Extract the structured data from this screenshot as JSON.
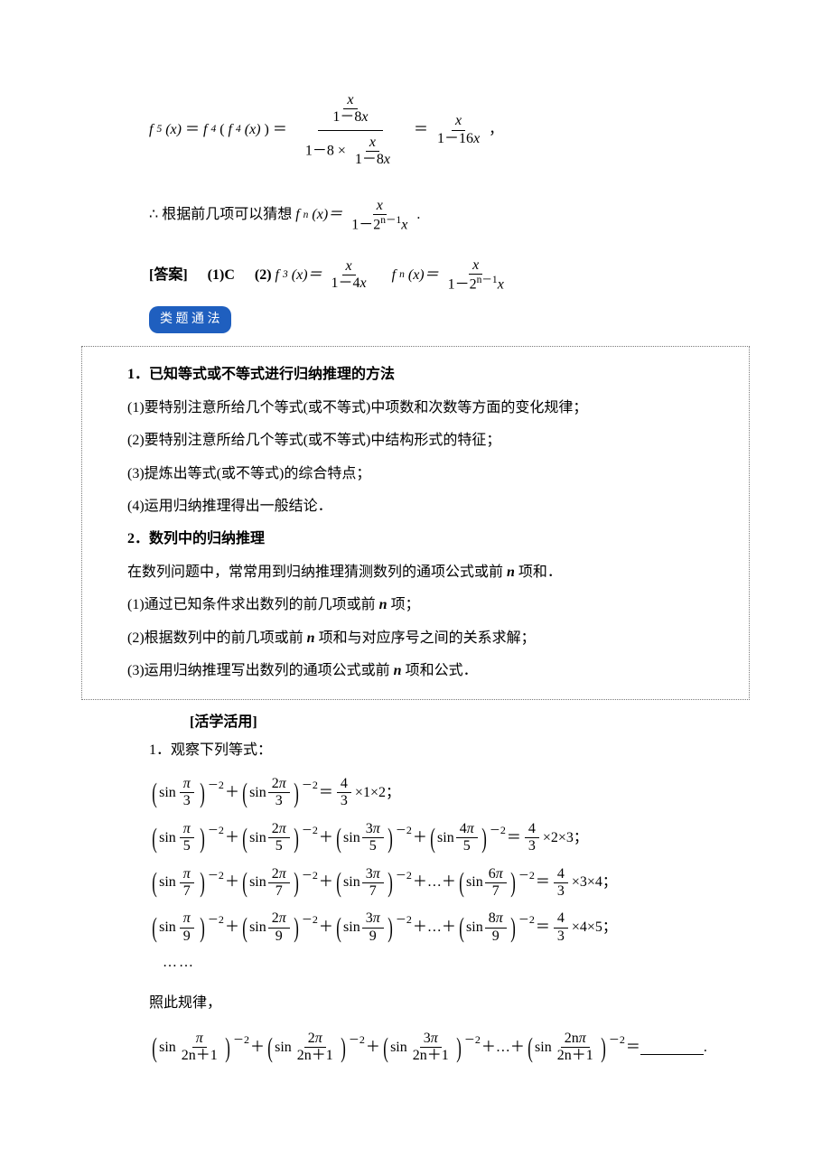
{
  "colors": {
    "text": "#000000",
    "background": "#ffffff",
    "pill_bg": "#1f5fbf",
    "pill_text": "#ffffff",
    "box_border": "#7a7a7a"
  },
  "typography": {
    "base_font": "SimSun / Times New Roman",
    "base_size_pt": 12,
    "line_height": 1.9
  },
  "f5": {
    "lhs": "f",
    "lhs_sub": "5",
    "lhs_arg": "(x)",
    "eq": "＝",
    "mid_f": "f",
    "mid_sub": "4",
    "mid_inner_f": "f",
    "mid_inner_sub": "4",
    "mid_inner_arg": "(x)",
    "complex_num_num": "x",
    "complex_num_den_pre": "1－8",
    "complex_num_den_var": "x",
    "complex_den_pre": "1－8  ×",
    "complex_den_frac_num": "x",
    "complex_den_frac_den_pre": "1－8",
    "complex_den_frac_den_var": "x",
    "rhs_num": "x",
    "rhs_den_pre": "1－16",
    "rhs_den_var": "x",
    "tail": "，"
  },
  "therefore": {
    "symbol": "∴",
    "text": "根据前几项可以猜想 ",
    "f": "f",
    "sub": "n",
    "arg": "(x)＝",
    "num": "x",
    "den_pre": "1－2",
    "den_sup": "n－1",
    "den_var": "x",
    "period": "."
  },
  "answer": {
    "label": "[答案]",
    "p1": "(1)C",
    "p2_pre": "(2)",
    "f3": "f",
    "f3_sub": "3",
    "f3_arg": "(x)＝",
    "f3_num": "x",
    "f3_den_pre": "1－4",
    "f3_den_var": "x",
    "fn": "f",
    "fn_sub": "n",
    "fn_arg": "(x)＝",
    "fn_num": "x",
    "fn_den_pre": "1－2",
    "fn_den_sup": "n－1",
    "fn_den_var": "x"
  },
  "pill": "类 题 通 法",
  "box": {
    "h1": "1．已知等式或不等式进行归纳推理的方法",
    "p1": "(1)要特别注意所给几个等式(或不等式)中项数和次数等方面的变化规律；",
    "p2": "(2)要特别注意所给几个等式(或不等式)中结构形式的特征；",
    "p3": "(3)提炼出等式(或不等式)的综合特点；",
    "p4": "(4)运用归纳推理得出一般结论．",
    "h2": "2．数列中的归纳推理",
    "p5_a": "在数列问题中，常常用到归纳推理猜测数列的通项公式或前 ",
    "p5_n": "n",
    "p5_b": " 项和．",
    "p6_a": "(1)通过已知条件求出数列的前几项或前 ",
    "p6_n": "n",
    "p6_b": " 项；",
    "p7_a": "(2)根据数列中的前几项或前 ",
    "p7_n": "n",
    "p7_b": " 项和与对应序号之间的关系求解；",
    "p8_a": "(3)运用归纳推理写出数列的通项公式或前 ",
    "p8_n": "n",
    "p8_b": " 项和公式．"
  },
  "section": "[活学活用]",
  "problem": {
    "num": "1．观察下列等式：",
    "sin": "sin",
    "pi": "π",
    "exp": "－2",
    "plus": "＋",
    "dots": "…＋",
    "eq43": {
      "num": "4",
      "den": "3"
    },
    "times": "×",
    "semicolon": "；",
    "ellipsis": "……",
    "rows": [
      {
        "den": "3",
        "terms": [
          {
            "numcoef": ""
          },
          {
            "numcoef": "2"
          }
        ],
        "rhs_a": "1",
        "rhs_b": "2"
      },
      {
        "den": "5",
        "terms": [
          {
            "numcoef": ""
          },
          {
            "numcoef": "2"
          },
          {
            "numcoef": "3"
          },
          {
            "numcoef": "4"
          }
        ],
        "rhs_a": "2",
        "rhs_b": "3"
      },
      {
        "den": "7",
        "terms_head": [
          {
            "numcoef": ""
          },
          {
            "numcoef": "2"
          },
          {
            "numcoef": "3"
          }
        ],
        "terms_tail": {
          "numcoef": "6"
        },
        "has_dots": true,
        "rhs_a": "3",
        "rhs_b": "4"
      },
      {
        "den": "9",
        "terms_head": [
          {
            "numcoef": ""
          },
          {
            "numcoef": "2"
          },
          {
            "numcoef": "3"
          }
        ],
        "terms_tail": {
          "numcoef": "8"
        },
        "has_dots": true,
        "rhs_a": "4",
        "rhs_b": "5"
      }
    ],
    "conclude": "照此规律，",
    "final_den": "2n＋1",
    "final_terms_head": [
      {
        "numcoef": ""
      },
      {
        "numcoef": "2"
      },
      {
        "numcoef": "3"
      }
    ],
    "final_tail_numcoef": "2n",
    "final_eq": "＝",
    "period": "."
  }
}
